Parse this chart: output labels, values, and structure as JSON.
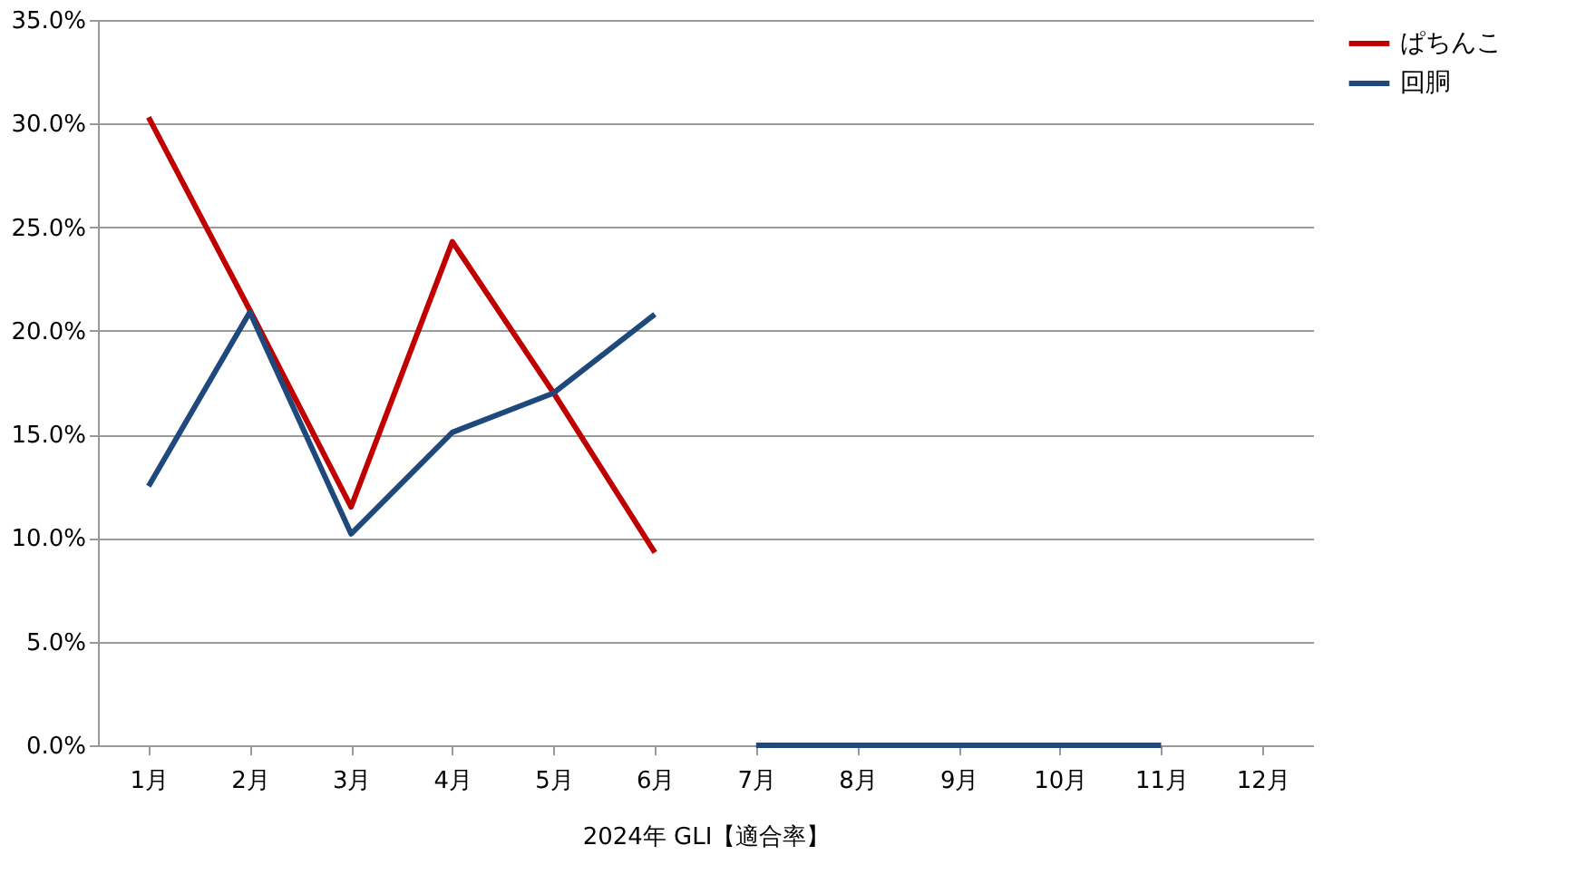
{
  "chart_data": {
    "type": "line",
    "xlabel": "2024年 GLI【適合率】",
    "categories": [
      "1月",
      "2月",
      "3月",
      "4月",
      "5月",
      "6月",
      "7月",
      "8月",
      "9月",
      "10月",
      "11月",
      "12月"
    ],
    "series": [
      {
        "name": "ぱちんこ",
        "color": "#c00000",
        "values": [
          30.3,
          21.0,
          11.5,
          24.3,
          17.0,
          9.3,
          null,
          null,
          null,
          null,
          null,
          null
        ]
      },
      {
        "name": "回胴",
        "color": "#1f497d",
        "values": [
          12.5,
          20.9,
          10.2,
          15.1,
          17.0,
          20.8,
          null,
          null,
          null,
          null,
          null,
          null
        ]
      },
      {
        "color": "#1f497d",
        "values": [
          null,
          null,
          null,
          null,
          null,
          null,
          0,
          0,
          0,
          0,
          0,
          null
        ]
      }
    ],
    "ylim": [
      0,
      35
    ],
    "yticks": [
      {
        "value": 0,
        "label": "0.0%"
      },
      {
        "value": 5,
        "label": "5.0%"
      },
      {
        "value": 10,
        "label": "10.0%"
      },
      {
        "value": 15,
        "label": "15.0%"
      },
      {
        "value": 20,
        "label": "20.0%"
      },
      {
        "value": 25,
        "label": "25.0%"
      },
      {
        "value": 30,
        "label": "30.0%"
      },
      {
        "value": 35,
        "label": "35.0%"
      }
    ],
    "grid": "y",
    "legend": "right",
    "marker": "none",
    "line_style": "solid"
  }
}
